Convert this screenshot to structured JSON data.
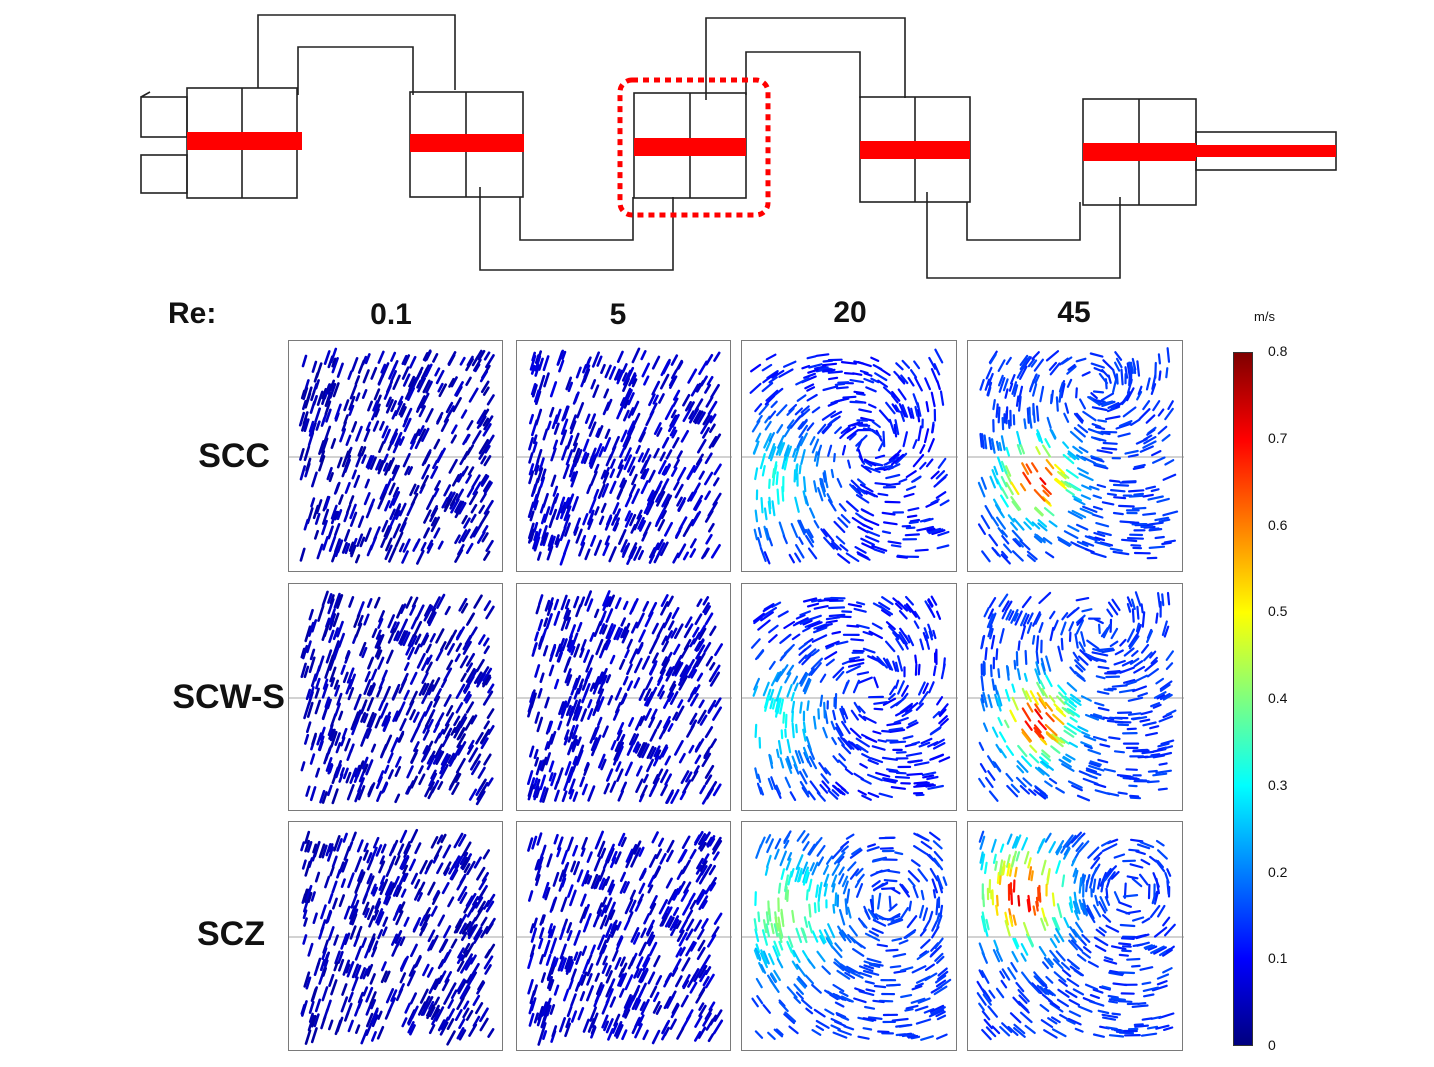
{
  "schematic": {
    "highlight_color": "#ff0000",
    "frame_color": "#222222"
  },
  "headers": {
    "re_label": "Re:",
    "values": [
      "0.1",
      "5",
      "20",
      "45"
    ]
  },
  "rows": [
    "SCC",
    "SCW-S",
    "SCZ"
  ],
  "colorbar": {
    "unit": "m/s",
    "ticks": [
      "0.8",
      "0.7",
      "0.6",
      "0.5",
      "0.4",
      "0.3",
      "0.2",
      "0.1",
      "0"
    ],
    "min": 0,
    "max": 0.8,
    "colormap": [
      "#00007f",
      "#0000ff",
      "#007fff",
      "#00ffff",
      "#7fff7f",
      "#ffff00",
      "#ff7f00",
      "#ff0000",
      "#7f0000"
    ]
  }
}
